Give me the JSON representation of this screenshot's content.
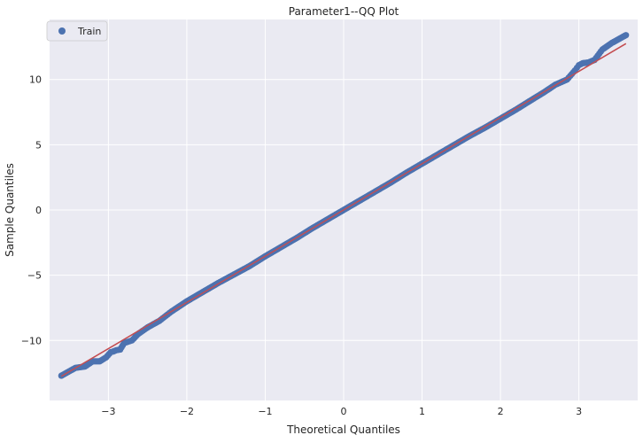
{
  "chart_data": {
    "type": "scatter",
    "title": "Parameter1--QQ Plot",
    "xlabel": "Theoretical Quantiles",
    "ylabel": "Sample Quantiles",
    "xlim": [
      -3.75,
      3.75
    ],
    "ylim": [
      -14.6,
      14.6
    ],
    "xticks": [
      -3,
      -2,
      -1,
      0,
      1,
      2,
      3
    ],
    "yticks": [
      -10,
      -5,
      0,
      5,
      10
    ],
    "grid": true,
    "legend_position": "top-left",
    "series": [
      {
        "name": "Train",
        "kind": "points",
        "color": "#4c72b0",
        "x": [
          -3.6,
          -3.42,
          -3.3,
          -3.2,
          -3.11,
          -3.03,
          -2.97,
          -2.94,
          -2.9,
          -2.85,
          -2.8,
          -2.75,
          -2.7,
          -2.62,
          -2.5,
          -2.35,
          -2.2,
          -2.0,
          -1.8,
          -1.6,
          -1.4,
          -1.2,
          -1.0,
          -0.8,
          -0.6,
          -0.4,
          -0.2,
          0.0,
          0.2,
          0.4,
          0.6,
          0.8,
          1.0,
          1.2,
          1.4,
          1.6,
          1.8,
          2.0,
          2.2,
          2.4,
          2.55,
          2.7,
          2.85,
          2.95,
          3.0,
          3.05,
          3.12,
          3.2,
          3.3,
          3.42,
          3.6
        ],
        "y": [
          -12.7,
          -12.1,
          -12.0,
          -11.6,
          -11.6,
          -11.3,
          -10.9,
          -10.85,
          -10.75,
          -10.7,
          -10.2,
          -10.1,
          -10.0,
          -9.5,
          -9.0,
          -8.5,
          -7.8,
          -7.0,
          -6.3,
          -5.6,
          -4.95,
          -4.3,
          -3.55,
          -2.85,
          -2.15,
          -1.4,
          -0.7,
          0.0,
          0.7,
          1.4,
          2.1,
          2.85,
          3.55,
          4.25,
          4.95,
          5.65,
          6.3,
          7.0,
          7.7,
          8.45,
          9.0,
          9.6,
          10.0,
          10.7,
          11.1,
          11.25,
          11.3,
          11.5,
          12.3,
          12.8,
          13.4
        ]
      },
      {
        "kind": "reference_line",
        "color": "#c44e52",
        "x": [
          -3.6,
          3.6
        ],
        "y": [
          -12.75,
          12.75
        ]
      }
    ]
  }
}
